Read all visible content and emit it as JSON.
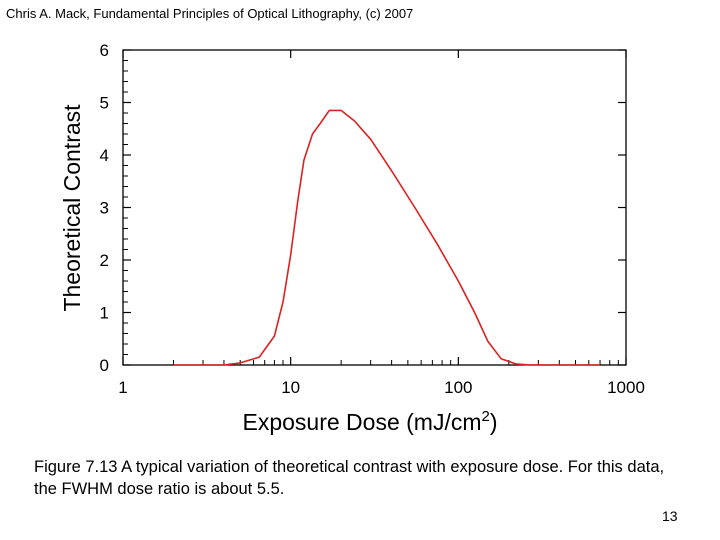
{
  "header": {
    "citation": "Chris A. Mack, Fundamental Principles of Optical Lithography, (c) 2007"
  },
  "caption": "Figure 7.13  A typical variation of theoretical contrast with exposure dose.  For this data, the FWHM dose ratio is about 5.5.",
  "page_number": "13",
  "chart_data": {
    "type": "line",
    "title": "",
    "xlabel": "Exposure Dose (mJ/cm",
    "xlabel_sup": "2",
    "xlabel_end": ")",
    "ylabel": "Theoretical Contrast",
    "x_scale": "log",
    "xlim": [
      1,
      1000
    ],
    "ylim": [
      0,
      6
    ],
    "x_ticks": [
      "1",
      "10",
      "100",
      "1000"
    ],
    "y_ticks": [
      "0",
      "1",
      "2",
      "3",
      "4",
      "5",
      "6"
    ],
    "grid": false,
    "line_color": "#e02020",
    "series": [
      {
        "x": [
          2.0,
          3.0,
          4.0,
          5.0,
          6.5,
          8.0,
          9.0,
          10.0,
          11.0,
          12.0,
          13.5,
          15.0,
          17.0,
          20.0,
          24.0,
          30.0,
          40.0,
          55.0,
          75.0,
          100.0,
          125.0,
          150.0,
          180.0,
          220.0,
          270.0,
          350.0,
          500.0,
          700.0
        ],
        "y": [
          0,
          0,
          0,
          0.04,
          0.15,
          0.55,
          1.2,
          2.1,
          3.1,
          3.9,
          4.4,
          4.6,
          4.85,
          4.85,
          4.65,
          4.3,
          3.7,
          3.0,
          2.3,
          1.6,
          1.0,
          0.45,
          0.12,
          0.02,
          0,
          0,
          0,
          0
        ]
      }
    ]
  }
}
